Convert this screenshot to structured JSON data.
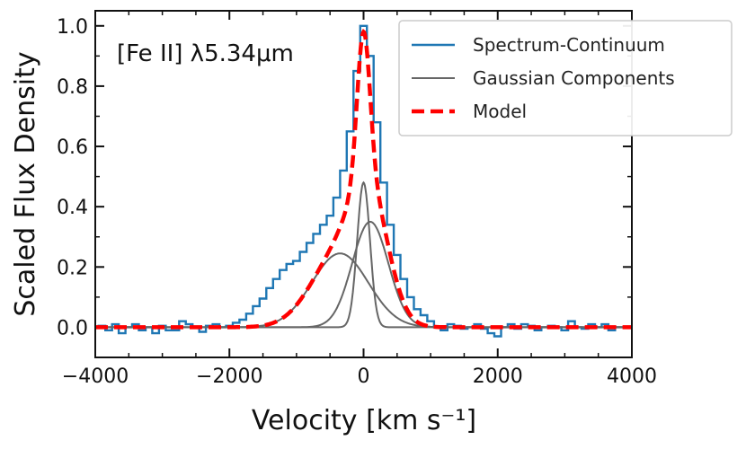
{
  "chart_data": {
    "type": "line",
    "annotation": "[Fe II] λ5.34μm",
    "xlabel": "Velocity [km s⁻¹]",
    "ylabel": "Scaled Flux Density",
    "xlim": [
      -4000,
      4000
    ],
    "ylim": [
      -0.1,
      1.05
    ],
    "xticks": [
      -4000,
      -2000,
      0,
      2000,
      4000
    ],
    "yticks": [
      0.0,
      0.2,
      0.4,
      0.6,
      0.8,
      1.0
    ],
    "xtick_labels": [
      "−4000",
      "−2000",
      "0",
      "2000",
      "4000"
    ],
    "ytick_labels": [
      "0.0",
      "0.2",
      "0.4",
      "0.6",
      "0.8",
      "1.0"
    ],
    "grid": false,
    "legend_position": "top-right",
    "colors": {
      "spectrum": "#1f77b4",
      "components": "#666666",
      "model": "#ff0000"
    },
    "series": [
      {
        "name": "Spectrum-Continuum",
        "style": "step",
        "x": [
          -4000,
          -3900,
          -3800,
          -3700,
          -3600,
          -3500,
          -3400,
          -3300,
          -3200,
          -3100,
          -3000,
          -2900,
          -2800,
          -2700,
          -2600,
          -2500,
          -2400,
          -2300,
          -2200,
          -2100,
          -2000,
          -1900,
          -1800,
          -1700,
          -1600,
          -1500,
          -1400,
          -1300,
          -1200,
          -1100,
          -1000,
          -900,
          -800,
          -700,
          -600,
          -500,
          -400,
          -300,
          -200,
          -100,
          0,
          100,
          200,
          300,
          400,
          500,
          600,
          700,
          800,
          900,
          1000,
          1100,
          1200,
          1300,
          1400,
          1500,
          1600,
          1700,
          1800,
          1900,
          2000,
          2100,
          2200,
          2300,
          2400,
          2500,
          2600,
          2700,
          2800,
          2900,
          3000,
          3100,
          3200,
          3300,
          3400,
          3500,
          3600,
          3700,
          3800,
          3900,
          4000
        ],
        "y": [
          0.0,
          0.005,
          -0.01,
          0.01,
          -0.02,
          0.0,
          0.01,
          -0.01,
          0.0,
          -0.02,
          0.005,
          -0.01,
          -0.01,
          0.02,
          0.01,
          0.0,
          -0.015,
          0.005,
          0.01,
          0.0,
          0.005,
          0.015,
          0.025,
          0.045,
          0.07,
          0.095,
          0.13,
          0.16,
          0.19,
          0.21,
          0.22,
          0.25,
          0.28,
          0.31,
          0.34,
          0.37,
          0.43,
          0.52,
          0.65,
          0.85,
          1.0,
          0.9,
          0.68,
          0.48,
          0.34,
          0.24,
          0.16,
          0.1,
          0.06,
          0.04,
          0.02,
          0.0,
          -0.01,
          0.01,
          0.005,
          -0.005,
          0.0,
          0.01,
          -0.005,
          -0.02,
          -0.03,
          0.0,
          0.01,
          -0.005,
          0.01,
          0.005,
          -0.01,
          0.0,
          0.005,
          0.0,
          -0.01,
          0.02,
          0.0,
          -0.005,
          0.01,
          0.0,
          0.01,
          -0.01,
          0.0,
          0.0,
          0.0
        ]
      },
      {
        "name": "Gaussian Components",
        "components": [
          {
            "amplitude": 0.245,
            "center": -350,
            "sigma": 420
          },
          {
            "amplitude": 0.35,
            "center": 100,
            "sigma": 270
          },
          {
            "amplitude": 0.48,
            "center": 0,
            "sigma": 95
          }
        ]
      },
      {
        "name": "Model",
        "style": "dashed"
      }
    ]
  }
}
